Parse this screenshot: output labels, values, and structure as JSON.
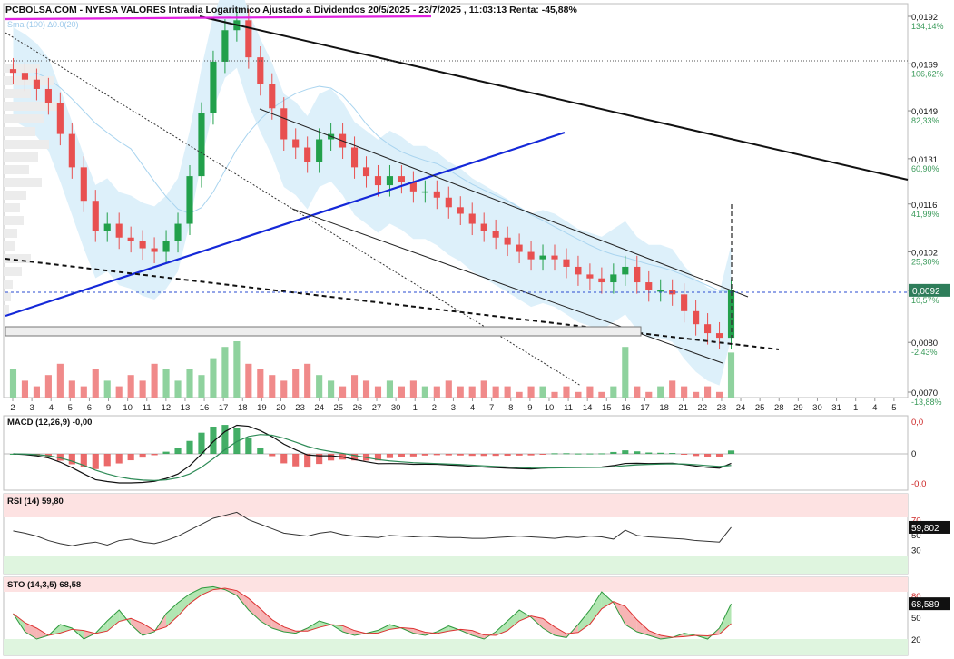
{
  "header": {
    "title": "PCBOLSA.COM - NYESA VALORES Intradia Logaritmico Ajustado a Dividendos 20/5/2025 - 23/7/2025 , 11:03:13 Renta: -45,88%",
    "indicator_label": "Sma (100) ∆0.0(20)"
  },
  "colors": {
    "up": "#22a04b",
    "down": "#e85050",
    "band_fill": "#d9eefa",
    "price_marker": "#2e7d5a",
    "trend_blue": "#1428d8",
    "magenta": "#e020e0",
    "ma_line": "#a9d4ef"
  },
  "chart_data": [
    {
      "type": "candlestick",
      "panel": "price",
      "scale": "log",
      "ylim": [
        0.007,
        0.0192
      ],
      "y_ticks": [
        {
          "price": "0,0192",
          "pct": "134,14%"
        },
        {
          "price": "0,0169",
          "pct": "106,62%"
        },
        {
          "price": "0,0149",
          "pct": "82,33%"
        },
        {
          "price": "0,0131",
          "pct": "60,90%"
        },
        {
          "price": "0,0116",
          "pct": "41,99%"
        },
        {
          "price": "0,0102",
          "pct": "25,30%"
        },
        {
          "price": "0,0092",
          "pct": "10,57%"
        },
        {
          "price": "0,0080",
          "pct": "-2,43%"
        },
        {
          "price": "0,0070",
          "pct": "-13,88%"
        }
      ],
      "x_labels": [
        "2",
        "3",
        "4",
        "5",
        "6",
        "9",
        "10",
        "11",
        "12",
        "13",
        "16",
        "17",
        "18",
        "19",
        "20",
        "23",
        "24",
        "25",
        "26",
        "27",
        "30",
        "1",
        "2",
        "3",
        "4",
        "7",
        "8",
        "9",
        "10",
        "11",
        "14",
        "15",
        "16",
        "17",
        "18",
        "21",
        "22",
        "23",
        "24",
        "25",
        "28",
        "29",
        "30",
        "31",
        "1",
        "4",
        "5"
      ],
      "last_price": "0,0092",
      "closes": [
        0.0165,
        0.0162,
        0.0158,
        0.0152,
        0.014,
        0.0128,
        0.0117,
        0.0108,
        0.011,
        0.0106,
        0.0105,
        0.0103,
        0.0102,
        0.0105,
        0.011,
        0.0125,
        0.0148,
        0.017,
        0.0185,
        0.019,
        0.0172,
        0.016,
        0.015,
        0.0138,
        0.0135,
        0.013,
        0.0138,
        0.014,
        0.0135,
        0.0128,
        0.0125,
        0.0122,
        0.0125,
        0.0123,
        0.012,
        0.012,
        0.0118,
        0.0115,
        0.0113,
        0.011,
        0.0108,
        0.0106,
        0.0104,
        0.0102,
        0.01,
        0.0101,
        0.01,
        0.0098,
        0.0096,
        0.0095,
        0.0094,
        0.0096,
        0.0098,
        0.0094,
        0.0092,
        0.0092,
        0.0091,
        0.0087,
        0.0084,
        0.0082,
        0.0081,
        0.0092
      ]
    },
    {
      "type": "bar",
      "panel": "volume",
      "values": [
        0.5,
        0.3,
        0.2,
        0.4,
        0.6,
        0.3,
        0.2,
        0.5,
        0.3,
        0.2,
        0.4,
        0.3,
        0.6,
        0.5,
        0.3,
        0.5,
        0.4,
        0.7,
        0.9,
        1.0,
        0.6,
        0.5,
        0.4,
        0.3,
        0.5,
        0.6,
        0.4,
        0.3,
        0.2,
        0.4,
        0.3,
        0.2,
        0.3,
        0.2,
        0.3,
        0.2,
        0.2,
        0.3,
        0.2,
        0.2,
        0.3,
        0.2,
        0.2,
        0.1,
        0.2,
        0.2,
        0.1,
        0.2,
        0.1,
        0.2,
        0.1,
        0.2,
        0.9,
        0.2,
        0.1,
        0.2,
        0.3,
        0.2,
        0.1,
        0.2,
        0.1,
        0.8
      ]
    },
    {
      "type": "line",
      "panel": "macd",
      "label": "MACD (12,26,9)",
      "value": "-0,00",
      "y_ticks": [
        "0,0",
        "0",
        "-0,0"
      ],
      "ylim": [
        -1,
        1
      ]
    },
    {
      "type": "line",
      "panel": "rsi",
      "label": "RSI (14)",
      "value": "59,80",
      "last_badge": "59,802",
      "y_ticks": [
        70,
        50,
        30
      ],
      "ylim": [
        0,
        100
      ],
      "values": [
        55,
        52,
        48,
        42,
        38,
        35,
        38,
        40,
        36,
        42,
        44,
        40,
        38,
        42,
        48,
        56,
        64,
        72,
        76,
        80,
        70,
        64,
        58,
        52,
        50,
        48,
        52,
        54,
        50,
        48,
        47,
        46,
        49,
        48,
        47,
        48,
        47,
        46,
        46,
        45,
        45,
        46,
        47,
        48,
        47,
        46,
        45,
        47,
        46,
        48,
        47,
        44,
        56,
        49,
        47,
        46,
        45,
        44,
        42,
        41,
        40,
        59.8
      ]
    },
    {
      "type": "line",
      "panel": "sto",
      "label": "STO (14,3,5)",
      "value": "68,58",
      "last_badge": "68,589",
      "y_ticks": [
        80,
        50,
        20
      ],
      "ylim": [
        0,
        100
      ],
      "values": [
        55,
        30,
        20,
        25,
        40,
        35,
        20,
        28,
        45,
        60,
        40,
        25,
        30,
        55,
        70,
        82,
        90,
        92,
        88,
        80,
        60,
        45,
        35,
        30,
        28,
        35,
        45,
        40,
        30,
        25,
        28,
        32,
        40,
        35,
        28,
        25,
        30,
        38,
        32,
        25,
        20,
        30,
        45,
        60,
        50,
        35,
        25,
        22,
        40,
        60,
        85,
        70,
        40,
        30,
        25,
        20,
        22,
        28,
        25,
        20,
        35,
        68.58
      ]
    }
  ]
}
